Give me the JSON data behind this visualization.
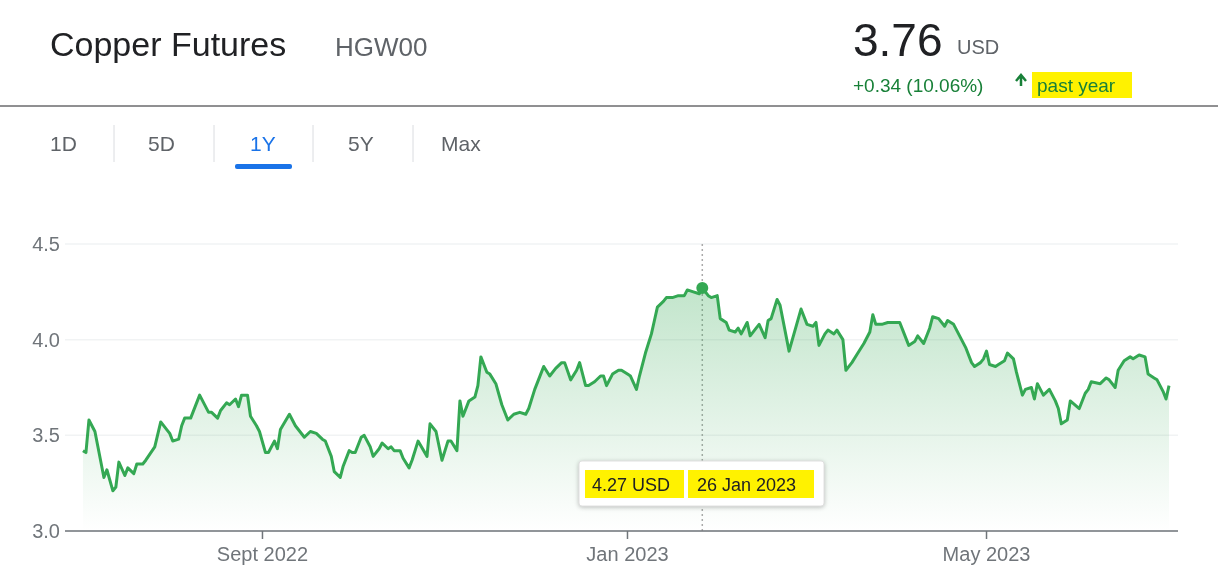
{
  "chart_data": {
    "type": "area",
    "title": "Copper Futures",
    "subtitle": "HGW00",
    "annotations": [
      "3.76",
      "USD",
      "+0.34 (10.06%)",
      "past year",
      "1D",
      "5D",
      "1Y",
      "5Y",
      "Max",
      "4.27 USD",
      "26 Jan 2023"
    ],
    "x": [
      "2022-07-03",
      "2022-07-04",
      "2022-07-05",
      "2022-07-07",
      "2022-07-08",
      "2022-07-10",
      "2022-07-11",
      "2022-07-13",
      "2022-07-14",
      "2022-07-15",
      "2022-07-17",
      "2022-07-18",
      "2022-07-20",
      "2022-07-21",
      "2022-07-23",
      "2022-07-24",
      "2022-07-27",
      "2022-07-29",
      "2022-07-31",
      "2022-08-01",
      "2022-08-02",
      "2022-08-04",
      "2022-08-05",
      "2022-08-06",
      "2022-08-08",
      "2022-08-11",
      "2022-08-14",
      "2022-08-15",
      "2022-08-17",
      "2022-08-18",
      "2022-08-20",
      "2022-08-21",
      "2022-08-23",
      "2022-08-24",
      "2022-08-25",
      "2022-08-27",
      "2022-08-28",
      "2022-08-30",
      "2022-08-31",
      "2022-09-02",
      "2022-09-03",
      "2022-09-05",
      "2022-09-06",
      "2022-09-07",
      "2022-09-10",
      "2022-09-12",
      "2022-09-15",
      "2022-09-17",
      "2022-09-19",
      "2022-09-21",
      "2022-09-22",
      "2022-09-24",
      "2022-09-25",
      "2022-09-27",
      "2022-09-28",
      "2022-09-30",
      "2022-10-01",
      "2022-10-02",
      "2022-10-04",
      "2022-10-05",
      "2022-10-07",
      "2022-10-08",
      "2022-10-10",
      "2022-10-11",
      "2022-10-13",
      "2022-10-14",
      "2022-10-15",
      "2022-10-17",
      "2022-10-18",
      "2022-10-20",
      "2022-10-21",
      "2022-10-23",
      "2022-10-26",
      "2022-10-27",
      "2022-10-29",
      "2022-10-31",
      "2022-11-02",
      "2022-11-03",
      "2022-11-05",
      "2022-11-06",
      "2022-11-07",
      "2022-11-09",
      "2022-11-11",
      "2022-11-12",
      "2022-11-13",
      "2022-11-15",
      "2022-11-16",
      "2022-11-18",
      "2022-11-20",
      "2022-11-22",
      "2022-11-24",
      "2022-11-26",
      "2022-11-28",
      "2022-11-29",
      "2022-12-01",
      "2022-12-03",
      "2022-12-04",
      "2022-12-06",
      "2022-12-08",
      "2022-12-10",
      "2022-12-11",
      "2022-12-13",
      "2022-12-15",
      "2022-12-16",
      "2022-12-18",
      "2022-12-19",
      "2022-12-21",
      "2022-12-23",
      "2022-12-24",
      "2022-12-25",
      "2022-12-27",
      "2022-12-29",
      "2022-12-30",
      "2023-01-01",
      "2023-01-02",
      "2023-01-04",
      "2023-01-05",
      "2023-01-07",
      "2023-01-09",
      "2023-01-10",
      "2023-01-11",
      "2023-01-13",
      "2023-01-14",
      "2023-01-16",
      "2023-01-18",
      "2023-01-20",
      "2023-01-21",
      "2023-01-23",
      "2023-01-25",
      "2023-01-26",
      "2023-01-28",
      "2023-01-29",
      "2023-01-31",
      "2023-02-01",
      "2023-02-03",
      "2023-02-04",
      "2023-02-06",
      "2023-02-07",
      "2023-02-08",
      "2023-02-10",
      "2023-02-11",
      "2023-02-13",
      "2023-02-14",
      "2023-02-16",
      "2023-02-17",
      "2023-02-18",
      "2023-02-20",
      "2023-02-21",
      "2023-02-24",
      "2023-02-28",
      "2023-03-02",
      "2023-03-04",
      "2023-03-05",
      "2023-03-06",
      "2023-03-08",
      "2023-03-09",
      "2023-03-11",
      "2023-03-12",
      "2023-03-14",
      "2023-03-15",
      "2023-03-17",
      "2023-03-19",
      "2023-03-21",
      "2023-03-23",
      "2023-03-24",
      "2023-03-25",
      "2023-03-27",
      "2023-03-29",
      "2023-04-02",
      "2023-04-03",
      "2023-04-05",
      "2023-04-07",
      "2023-04-08",
      "2023-04-10",
      "2023-04-12",
      "2023-04-13",
      "2023-04-15",
      "2023-04-17",
      "2023-04-18",
      "2023-04-20",
      "2023-04-22",
      "2023-04-24",
      "2023-04-26",
      "2023-04-27",
      "2023-04-29",
      "2023-04-30",
      "2023-05-01",
      "2023-05-02",
      "2023-05-04",
      "2023-05-05",
      "2023-05-07",
      "2023-05-08",
      "2023-05-10",
      "2023-05-11",
      "2023-05-13",
      "2023-05-14",
      "2023-05-16",
      "2023-05-17",
      "2023-05-18",
      "2023-05-20",
      "2023-05-22",
      "2023-05-24",
      "2023-05-25",
      "2023-05-26",
      "2023-05-28",
      "2023-05-29",
      "2023-06-01",
      "2023-06-03",
      "2023-06-04",
      "2023-06-05",
      "2023-06-08",
      "2023-06-10",
      "2023-06-11",
      "2023-06-13",
      "2023-06-14",
      "2023-06-16",
      "2023-06-18",
      "2023-06-19",
      "2023-06-21",
      "2023-06-23",
      "2023-06-24",
      "2023-06-26",
      "2023-06-27",
      "2023-06-29",
      "2023-06-30",
      "2023-07-01"
    ],
    "series": [
      {
        "color": "#34a853",
        "values": [
          3.42,
          3.41,
          3.58,
          3.52,
          3.44,
          3.28,
          3.32,
          3.21,
          3.23,
          3.36,
          3.29,
          3.33,
          3.3,
          3.35,
          3.35,
          3.37,
          3.44,
          3.57,
          3.53,
          3.51,
          3.47,
          3.48,
          3.55,
          3.59,
          3.59,
          3.71,
          3.62,
          3.62,
          3.59,
          3.63,
          3.67,
          3.66,
          3.69,
          3.65,
          3.71,
          3.71,
          3.6,
          3.55,
          3.52,
          3.41,
          3.41,
          3.47,
          3.43,
          3.53,
          3.61,
          3.55,
          3.49,
          3.52,
          3.51,
          3.48,
          3.47,
          3.39,
          3.31,
          3.28,
          3.34,
          3.42,
          3.41,
          3.41,
          3.49,
          3.5,
          3.44,
          3.39,
          3.43,
          3.46,
          3.43,
          3.44,
          3.42,
          3.42,
          3.38,
          3.33,
          3.37,
          3.47,
          3.39,
          3.56,
          3.52,
          3.37,
          3.47,
          3.47,
          3.42,
          3.68,
          3.6,
          3.68,
          3.7,
          3.76,
          3.91,
          3.83,
          3.82,
          3.77,
          3.66,
          3.58,
          3.61,
          3.62,
          3.61,
          3.64,
          3.74,
          3.82,
          3.86,
          3.81,
          3.85,
          3.88,
          3.88,
          3.79,
          3.84,
          3.88,
          3.76,
          3.76,
          3.78,
          3.81,
          3.81,
          3.76,
          3.82,
          3.84,
          3.84,
          3.82,
          3.81,
          3.74,
          3.81,
          3.93,
          4.03,
          4.1,
          4.17,
          4.2,
          4.22,
          4.22,
          4.23,
          4.23,
          4.26,
          4.25,
          4.24,
          4.27,
          4.23,
          4.22,
          4.23,
          4.11,
          4.09,
          4.05,
          4.04,
          4.06,
          4.03,
          4.09,
          4.02,
          4.06,
          4.08,
          4.01,
          4.1,
          4.11,
          4.21,
          4.18,
          3.94,
          4.16,
          4.08,
          4.07,
          4.09,
          3.97,
          4.03,
          4.05,
          4.03,
          4.05,
          4.0,
          3.84,
          3.88,
          3.93,
          3.98,
          4.04,
          4.13,
          4.08,
          4.08,
          4.09,
          4.09,
          4.05,
          3.97,
          3.99,
          4.02,
          3.98,
          4.06,
          4.12,
          4.11,
          4.07,
          4.1,
          4.08,
          4.02,
          3.96,
          3.88,
          3.86,
          3.88,
          3.9,
          3.94,
          3.87,
          3.86,
          3.87,
          3.89,
          3.93,
          3.9,
          3.83,
          3.71,
          3.74,
          3.75,
          3.69,
          3.77,
          3.71,
          3.74,
          3.68,
          3.64,
          3.56,
          3.58,
          3.68,
          3.64,
          3.72,
          3.74,
          3.78,
          3.77,
          3.8,
          3.79,
          3.75,
          3.84,
          3.89,
          3.91,
          3.9,
          3.92,
          3.91,
          3.82,
          3.8,
          3.79,
          3.73,
          3.69,
          3.76
        ]
      }
    ],
    "xlim": [
      "2022-06-27",
      "2023-07-04"
    ],
    "xticks": [
      {
        "value": "2022-09-01",
        "label": "Sept 2022"
      },
      {
        "value": "2023-01-01",
        "label": "Jan 2023"
      },
      {
        "value": "2023-05-01",
        "label": "May 2023"
      }
    ],
    "ylim": [
      3.0,
      4.5
    ],
    "yticks": [
      {
        "value": 3,
        "label": "3.0"
      },
      {
        "value": 3.5,
        "label": "3.5"
      },
      {
        "value": 4,
        "label": "4.0"
      },
      4.5
    ],
    "ref_lines": [
      {
        "axis": "x",
        "value": "2023-01-26",
        "color": "#aaaaaa",
        "line_style": "dotted"
      }
    ],
    "grid": "y",
    "marker": "none",
    "line_style": "solid"
  }
}
